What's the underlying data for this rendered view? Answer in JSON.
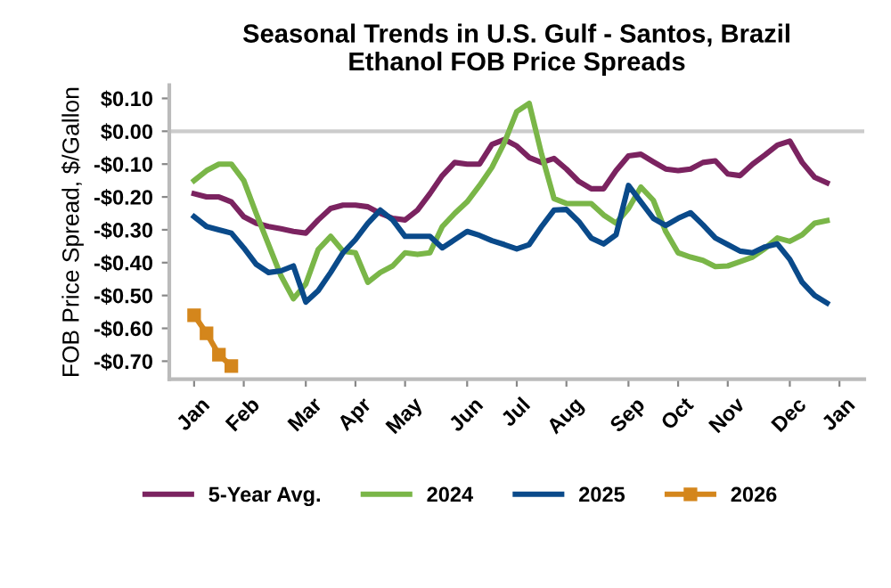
{
  "chart_data": {
    "type": "line",
    "title": "Seasonal Trends in U.S. Gulf - Santos, Brazil\nEthanol FOB Price Spreads",
    "ylabel": "FOB Price Spread, $/Gallon",
    "categories": [
      "Jan",
      null,
      null,
      null,
      "Feb",
      null,
      null,
      null,
      null,
      "Mar",
      null,
      null,
      null,
      "Apr",
      null,
      null,
      null,
      "May",
      null,
      null,
      null,
      null,
      "Jun",
      null,
      null,
      null,
      "Jul",
      null,
      null,
      null,
      "Aug",
      null,
      null,
      null,
      null,
      "Sep",
      null,
      null,
      null,
      "Oct",
      null,
      null,
      null,
      "Nov",
      null,
      null,
      null,
      null,
      "Dec",
      null,
      null,
      null,
      "Jan"
    ],
    "ylim": [
      -0.755,
      0.14
    ],
    "yticks": [
      {
        "value": 0.1,
        "label": "$0.10"
      },
      {
        "value": 0,
        "label": "$0.00"
      },
      {
        "value": -0.1,
        "label": "-$0.10"
      },
      {
        "value": -0.2,
        "label": "-$0.20"
      },
      {
        "value": -0.3,
        "label": "-$0.30"
      },
      {
        "value": -0.4,
        "label": "-$0.40"
      },
      {
        "value": -0.5,
        "label": "-$0.50"
      },
      {
        "value": -0.6,
        "label": "-$0.60"
      },
      {
        "value": -0.7,
        "label": "-$0.70"
      }
    ],
    "ref_lines": [
      {
        "axis": "y",
        "value": 0,
        "color": "#cccccc"
      }
    ],
    "legend": "bottom",
    "series": [
      {
        "name": "5-Year Avg.",
        "color": "#7b2360",
        "values": [
          -0.19,
          -0.2,
          -0.2,
          -0.215,
          -0.26,
          -0.28,
          -0.29,
          -0.297,
          -0.305,
          -0.31,
          -0.27,
          -0.235,
          -0.225,
          -0.225,
          -0.23,
          -0.25,
          -0.265,
          -0.27,
          -0.24,
          -0.19,
          -0.135,
          -0.095,
          -0.1,
          -0.1,
          -0.04,
          -0.025,
          -0.045,
          -0.08,
          -0.095,
          -0.083,
          -0.115,
          -0.153,
          -0.175,
          -0.175,
          -0.12,
          -0.075,
          -0.07,
          -0.093,
          -0.115,
          -0.12,
          -0.115,
          -0.095,
          -0.09,
          -0.13,
          -0.135,
          -0.1,
          -0.072,
          -0.042,
          -0.03,
          -0.095,
          -0.14,
          -0.157,
          null
        ]
      },
      {
        "name": "2024",
        "color": "#7ab648",
        "values": [
          -0.15,
          -0.12,
          -0.1,
          -0.1,
          -0.15,
          -0.25,
          -0.345,
          -0.44,
          -0.51,
          -0.465,
          -0.36,
          -0.32,
          -0.365,
          -0.37,
          -0.46,
          -0.43,
          -0.41,
          -0.37,
          -0.375,
          -0.37,
          -0.29,
          -0.25,
          -0.215,
          -0.165,
          -0.11,
          -0.035,
          0.06,
          0.085,
          -0.07,
          -0.205,
          -0.22,
          -0.22,
          -0.22,
          -0.255,
          -0.28,
          -0.235,
          -0.17,
          -0.21,
          -0.305,
          -0.37,
          -0.383,
          -0.393,
          -0.412,
          -0.41,
          -0.397,
          -0.383,
          -0.357,
          -0.325,
          -0.335,
          -0.315,
          -0.28,
          -0.272,
          null
        ]
      },
      {
        "name": "2025",
        "color": "#0a4a8a",
        "values": [
          -0.26,
          -0.29,
          -0.3,
          -0.31,
          -0.355,
          -0.405,
          -0.43,
          -0.425,
          -0.41,
          -0.52,
          -0.485,
          -0.43,
          -0.37,
          -0.33,
          -0.28,
          -0.24,
          -0.27,
          -0.32,
          -0.32,
          -0.32,
          -0.355,
          -0.33,
          -0.305,
          -0.317,
          -0.333,
          -0.345,
          -0.358,
          -0.345,
          -0.29,
          -0.24,
          -0.238,
          -0.275,
          -0.325,
          -0.343,
          -0.315,
          -0.165,
          -0.215,
          -0.265,
          -0.287,
          -0.265,
          -0.248,
          -0.285,
          -0.325,
          -0.345,
          -0.365,
          -0.37,
          -0.352,
          -0.343,
          -0.39,
          -0.46,
          -0.5,
          -0.523,
          null
        ]
      },
      {
        "name": "2026",
        "color": "#d4861c",
        "marker": "square",
        "values": [
          -0.56,
          -0.615,
          -0.68,
          -0.715,
          null,
          null,
          null,
          null,
          null,
          null,
          null,
          null,
          null,
          null,
          null,
          null,
          null,
          null,
          null,
          null,
          null,
          null,
          null,
          null,
          null,
          null,
          null,
          null,
          null,
          null,
          null,
          null,
          null,
          null,
          null,
          null,
          null,
          null,
          null,
          null,
          null,
          null,
          null,
          null,
          null,
          null,
          null,
          null,
          null,
          null,
          null,
          null,
          null
        ]
      }
    ]
  }
}
